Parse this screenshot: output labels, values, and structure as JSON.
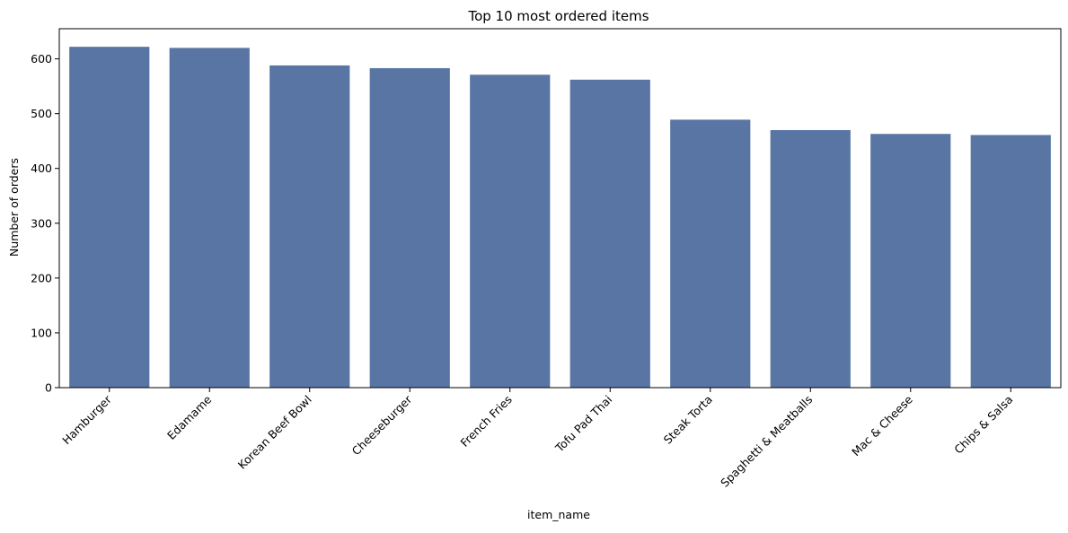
{
  "chart_data": {
    "type": "bar",
    "title": "Top 10 most ordered items",
    "xlabel": "item_name",
    "ylabel": "Number of orders",
    "categories": [
      "Hamburger",
      "Edamame",
      "Korean Beef Bowl",
      "Cheeseburger",
      "French Fries",
      "Tofu Pad Thai",
      "Steak Torta",
      "Spaghetti & Meatballs",
      "Mac & Cheese",
      "Chips & Salsa"
    ],
    "values": [
      622,
      620,
      588,
      583,
      571,
      562,
      489,
      470,
      463,
      461
    ],
    "ylim": [
      0,
      655
    ],
    "yticks": [
      0,
      100,
      200,
      300,
      400,
      500,
      600
    ],
    "grid": false,
    "colors": {
      "bar": "#5975a4"
    }
  }
}
